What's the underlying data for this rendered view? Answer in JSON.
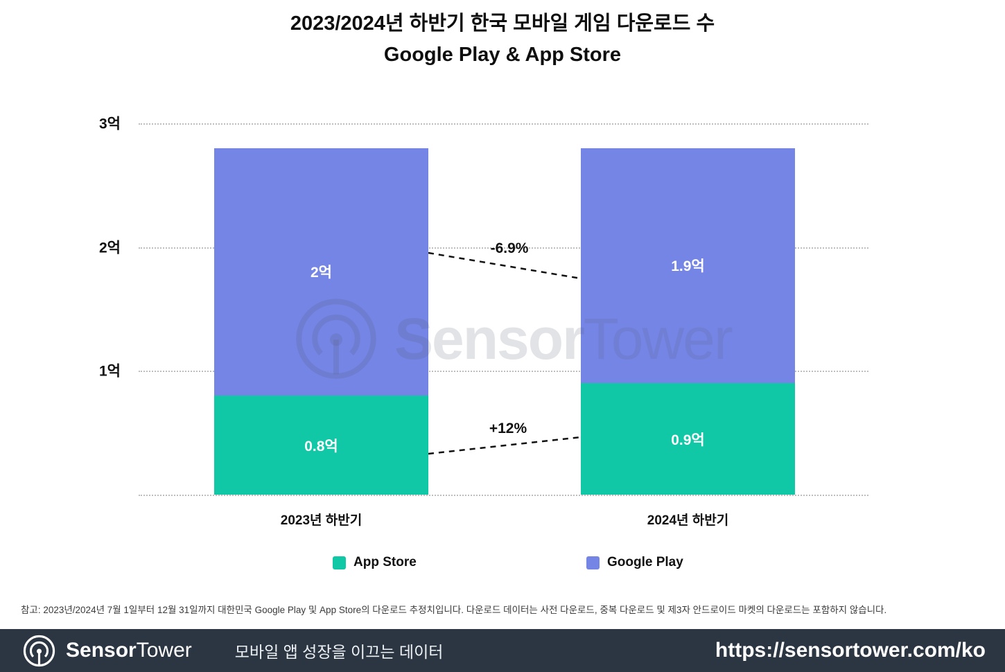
{
  "title": {
    "line1": "2023/2024년 하반기 한국 모바일 게임 다운로드 수",
    "line2": "Google Play & App Store"
  },
  "chart_data": {
    "type": "bar",
    "stacked": true,
    "title": "2023/2024년 하반기 한국 모바일 게임 다운로드 수 Google Play & App Store",
    "categories": [
      "2023년 하반기",
      "2024년 하반기"
    ],
    "series": [
      {
        "name": "App Store",
        "color": "#11C8A6",
        "values": [
          0.8,
          0.9
        ],
        "labels": [
          "0.8억",
          "0.9억"
        ]
      },
      {
        "name": "Google Play",
        "color": "#7585E5",
        "values": [
          2.0,
          1.9
        ],
        "labels": [
          "2억",
          "1.9억"
        ]
      }
    ],
    "unit": "억",
    "ylim": [
      0,
      3
    ],
    "y_ticks": [
      {
        "value": 1,
        "label": "1억"
      },
      {
        "value": 2,
        "label": "2억"
      },
      {
        "value": 3,
        "label": "3억"
      }
    ],
    "grid": "dotted-horizontal",
    "legend_position": "bottom",
    "annotations": [
      {
        "label": "-6.9%",
        "series": "Google Play",
        "between": [
          "2023년 하반기",
          "2024년 하반기"
        ]
      },
      {
        "label": "+12%",
        "series": "App Store",
        "between": [
          "2023년 하반기",
          "2024년 하반기"
        ]
      }
    ]
  },
  "watermark": {
    "bold": "Sensor",
    "light": "Tower"
  },
  "footnote": "참고: 2023년/2024년 7월 1일부터 12월 31일까지 대한민국 Google Play 및 App Store의 다운로드 추정치입니다. 다운로드 데이터는 사전 다운로드, 중복 다운로드 및 제3자 안드로이드 마켓의 다운로드는 포함하지 않습니다.",
  "footer": {
    "brand_bold": "Sensor",
    "brand_light": "Tower",
    "tagline": "모바일 앱 성장을 이끄는 데이터",
    "url": "https://sensortower.com/ko",
    "bg_color": "#2C3642"
  }
}
